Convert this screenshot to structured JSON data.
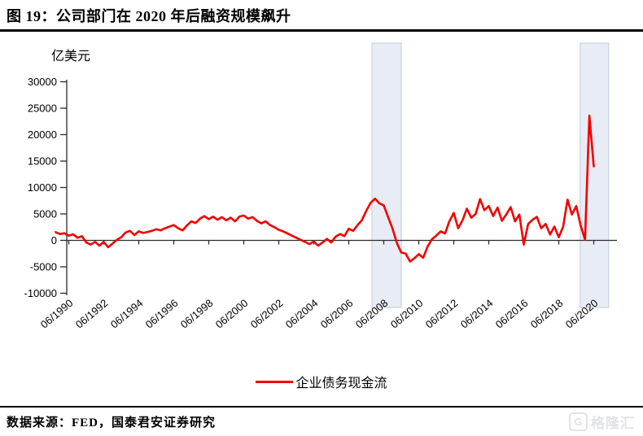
{
  "header": {
    "title": "图 19：公司部门在 2020 年后融资规模飙升"
  },
  "chart_data": {
    "type": "line",
    "unit_label": "亿美元",
    "x_start": "1989Q3",
    "x_frequency": "quarterly",
    "series": [
      {
        "name": "企业债务现金流",
        "color": "#f20000",
        "values": [
          1550,
          1200,
          1350,
          900,
          1150,
          500,
          800,
          -400,
          -800,
          -300,
          -1000,
          -300,
          -1300,
          -600,
          100,
          600,
          1500,
          1800,
          1000,
          1700,
          1400,
          1600,
          1800,
          2100,
          1900,
          2300,
          2600,
          2900,
          2300,
          1900,
          2800,
          3600,
          3300,
          4100,
          4600,
          4000,
          4500,
          3900,
          4400,
          3800,
          4300,
          3600,
          4500,
          4700,
          4100,
          4400,
          3700,
          3200,
          3600,
          2900,
          2500,
          2000,
          1700,
          1300,
          900,
          500,
          100,
          -300,
          -700,
          -200,
          -1000,
          -400,
          300,
          -400,
          700,
          1200,
          800,
          2200,
          1800,
          2900,
          3800,
          5600,
          7100,
          7900,
          7000,
          6600,
          4400,
          2200,
          -500,
          -2300,
          -2500,
          -4000,
          -3400,
          -2600,
          -3300,
          -1200,
          200,
          900,
          1700,
          1300,
          3600,
          5200,
          2300,
          3800,
          6000,
          4300,
          5000,
          7800,
          5700,
          6500,
          4600,
          6200,
          3700,
          4900,
          6300,
          3600,
          4900,
          -800,
          3100,
          3900,
          4450,
          2300,
          3100,
          1100,
          2600,
          600,
          2600,
          7700,
          4900,
          6500,
          2800,
          100,
          23600,
          14000
        ]
      }
    ],
    "ylim": [
      -10000,
      30000
    ],
    "yticks": [
      30000,
      25000,
      20000,
      15000,
      10000,
      5000,
      0,
      -5000,
      -10000
    ],
    "xticks": [
      "06/1990",
      "06/1992",
      "06/1994",
      "06/1996",
      "06/1998",
      "06/2000",
      "06/2002",
      "06/2004",
      "06/2006",
      "06/2008",
      "06/2010",
      "06/2012",
      "06/2014",
      "06/2016",
      "06/2018",
      "06/2020"
    ],
    "highlight_bands": [
      {
        "start_index": 72.3,
        "end_index": 79.0
      },
      {
        "start_index": 119.9,
        "end_index": 126.4
      }
    ],
    "band_fill": "#e8edf5",
    "band_stroke": "#c8d2e2",
    "axis_color": "#2b2b2b",
    "grid": false,
    "legend_position": "bottom"
  },
  "legend": {
    "label": "企业债务现金流"
  },
  "footer": {
    "source": "数据来源：FED，国泰君安证券研究",
    "watermark": "格隆汇",
    "watermark_letter": "G"
  }
}
